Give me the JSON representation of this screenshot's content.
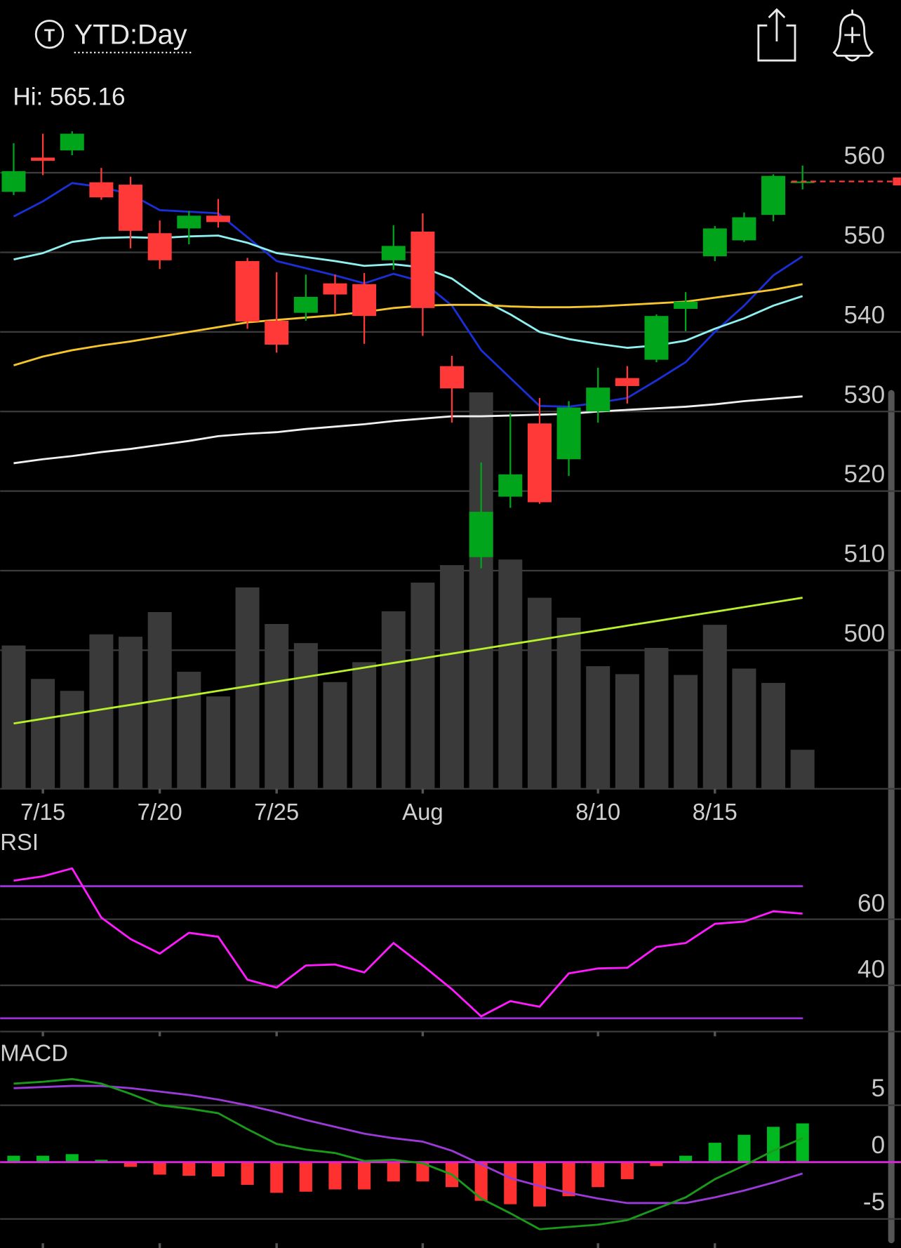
{
  "header": {
    "icon_letter": "T",
    "title": "YTD:Day",
    "hi_label": "Hi: 565.16"
  },
  "chart_data": [
    {
      "type": "candlestick",
      "categories": [
        null,
        "7/15",
        null,
        null,
        null,
        "7/20",
        null,
        null,
        null,
        "7/25",
        null,
        null,
        null,
        null,
        "Aug",
        null,
        null,
        null,
        null,
        null,
        "8/10",
        null,
        null,
        null,
        "8/15",
        null,
        null,
        null
      ],
      "open": [
        557.6,
        561.9,
        562.8,
        558.8,
        558.5,
        552.4,
        553.0,
        554.6,
        548.9,
        541.4,
        542.4,
        546.1,
        546.0,
        549.0,
        552.6,
        535.7,
        511.7,
        519.3,
        528.5,
        524.0,
        530.0,
        534.2,
        536.5,
        542.9,
        549.5,
        551.5,
        554.7,
        558.9
      ],
      "high": [
        563.7,
        564.9,
        565.2,
        560.6,
        559.5,
        554.0,
        555.2,
        556.7,
        549.3,
        547.5,
        547.2,
        547.2,
        547.4,
        553.4,
        554.9,
        537.0,
        523.6,
        529.8,
        531.7,
        531.3,
        535.5,
        535.7,
        542.2,
        545.0,
        553.3,
        555.0,
        559.8,
        560.9
      ],
      "low": [
        557.2,
        559.7,
        562.2,
        556.6,
        550.5,
        547.9,
        551.0,
        553.1,
        540.4,
        537.4,
        541.4,
        542.3,
        538.5,
        547.8,
        539.5,
        528.6,
        510.3,
        517.9,
        518.4,
        521.9,
        528.6,
        531.0,
        536.2,
        540.1,
        548.9,
        551.3,
        553.9,
        557.9
      ],
      "close": [
        560.2,
        561.5,
        564.9,
        556.9,
        552.7,
        549.0,
        554.6,
        553.8,
        541.3,
        538.4,
        544.4,
        544.7,
        542.0,
        550.8,
        543.0,
        532.9,
        517.4,
        522.1,
        518.6,
        530.5,
        533.0,
        533.2,
        542.0,
        543.8,
        553.0,
        554.4,
        559.6,
        558.9
      ],
      "up_color": "#00a51b",
      "down_color": "#ff3838",
      "ylim": [
        482.6,
        565.7
      ],
      "yticks": [
        500,
        510,
        520,
        530,
        540,
        550,
        560
      ],
      "grid": true,
      "moving_averages": [
        {
          "color": "#1b2fd6",
          "values": [
            554.5,
            556.4,
            558.7,
            558.2,
            557.3,
            555.3,
            555.1,
            554.9,
            551.9,
            548.9,
            548.0,
            547.1,
            546.1,
            547.3,
            546.3,
            543.3,
            537.7,
            534.2,
            530.7,
            530.6,
            531.1,
            531.7,
            533.9,
            536.2,
            540.0,
            543.3,
            547.1,
            549.5
          ]
        },
        {
          "color": "#8ff0f0",
          "values": [
            549.1,
            549.9,
            551.3,
            551.8,
            551.9,
            551.8,
            552.0,
            552.1,
            551.2,
            549.9,
            549.4,
            548.9,
            548.3,
            548.5,
            548.1,
            546.7,
            544.1,
            542.2,
            540.0,
            539.1,
            538.5,
            538.0,
            538.3,
            538.9,
            540.4,
            541.7,
            543.3,
            544.5
          ]
        },
        {
          "color": "#f5c52c",
          "values": [
            535.8,
            536.9,
            537.7,
            538.3,
            538.8,
            539.4,
            540.0,
            540.6,
            541.2,
            541.5,
            541.8,
            542.1,
            542.5,
            543.0,
            543.3,
            543.4,
            543.4,
            543.2,
            543.1,
            543.1,
            543.2,
            543.4,
            543.6,
            543.8,
            544.3,
            544.8,
            545.3,
            546.0
          ]
        },
        {
          "color": "#f0f0f0",
          "values": [
            523.5,
            524.0,
            524.4,
            524.9,
            525.3,
            525.8,
            526.3,
            526.9,
            527.2,
            527.4,
            527.8,
            528.1,
            528.4,
            528.8,
            529.1,
            529.4,
            529.4,
            529.5,
            529.6,
            529.7,
            530.0,
            530.2,
            530.4,
            530.6,
            530.9,
            531.3,
            531.6,
            531.9
          ]
        }
      ],
      "volume": {
        "color": "#3a3a3a",
        "ylim": [
          0,
          500
        ],
        "values": [
          180,
          138,
          123,
          194,
          191,
          222,
          147,
          116,
          253,
          207,
          183,
          134,
          159,
          223,
          259,
          281,
          498,
          288,
          240,
          215,
          154,
          144,
          177,
          143,
          206,
          151,
          133,
          49
        ],
        "average": {
          "color": "#b8f02a",
          "values": [
            82,
            87.9,
            93.7,
            99.6,
            105.4,
            111.3,
            117.1,
            123,
            128.8,
            134.7,
            140.5,
            146.4,
            152.2,
            158.1,
            163.9,
            169.8,
            175.6,
            181.5,
            187.3,
            193.2,
            199,
            204.9,
            210.7,
            216.6,
            222.4,
            228.3,
            234.1,
            240
          ]
        }
      }
    },
    {
      "type": "line",
      "title": "RSI",
      "values": [
        71.7,
        73.0,
        75.4,
        60.5,
        54.0,
        49.6,
        55.9,
        54.7,
        41.7,
        39.3,
        46.0,
        46.3,
        43.9,
        52.8,
        46.0,
        38.8,
        30.6,
        35.2,
        33.5,
        43.6,
        45.1,
        45.3,
        51.6,
        52.8,
        58.6,
        59.3,
        62.4,
        61.7
      ],
      "color": "#ff1aff",
      "bands": [
        30,
        70
      ],
      "band_color": "#9b30d9",
      "ylim": [
        26,
        85.3
      ],
      "yticks": [
        40,
        60
      ],
      "grid": true
    },
    {
      "type": "macd",
      "title": "MACD",
      "histogram": [
        0.56,
        0.56,
        0.7,
        0.2,
        -0.42,
        -1.1,
        -1.2,
        -1.26,
        -2.0,
        -2.7,
        -2.6,
        -2.4,
        -2.4,
        -1.7,
        -1.7,
        -2.2,
        -3.4,
        -3.7,
        -3.9,
        -3.0,
        -2.2,
        -1.5,
        -0.35,
        0.56,
        1.7,
        2.4,
        3.1,
        3.4
      ],
      "up_color": "#00b81f",
      "down_color": "#ff3030",
      "macd": {
        "color": "#1a9a1a",
        "values": [
          6.9,
          7.06,
          7.3,
          6.9,
          6.0,
          5.0,
          4.7,
          4.3,
          2.9,
          1.6,
          1.1,
          0.8,
          0.1,
          0.2,
          -0.1,
          -1.1,
          -3.2,
          -4.5,
          -5.9,
          -5.7,
          -5.5,
          -5.1,
          -4.1,
          -3.1,
          -1.5,
          -0.3,
          1.0,
          2.1
        ]
      },
      "signal": {
        "color": "#9b3ad9",
        "values": [
          6.5,
          6.6,
          6.7,
          6.7,
          6.5,
          6.2,
          5.9,
          5.5,
          5.0,
          4.4,
          3.7,
          3.1,
          2.5,
          2.1,
          1.8,
          1.0,
          -0.2,
          -1.4,
          -2.1,
          -2.7,
          -3.2,
          -3.6,
          -3.6,
          -3.6,
          -3.1,
          -2.5,
          -1.8,
          -1.0
        ]
      },
      "zero_color": "#e020e0",
      "ylim": [
        -7.55,
        10.5
      ],
      "yticks": [
        -5,
        0,
        5
      ],
      "grid": true
    }
  ]
}
